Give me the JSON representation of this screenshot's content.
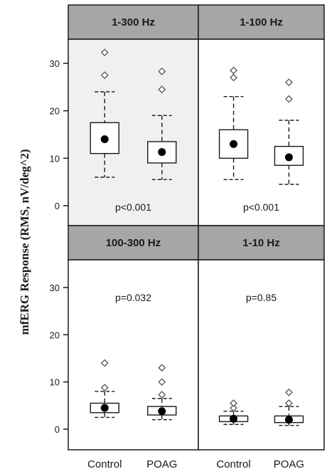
{
  "chart_data": {
    "type": "boxplot",
    "ylabel": "mfERG Response (RMS, nV/deg^2)",
    "categories": [
      "Control",
      "POAG"
    ],
    "colors": {
      "strip": "#a6a6a6",
      "shaded_panel": "#f0f0f0",
      "frame": "#1a1a1a"
    },
    "panels": [
      {
        "title": "1-300 Hz",
        "yticks": [
          "30",
          "20",
          "10",
          "0"
        ],
        "pvalue": "p<0.001",
        "shaded": true,
        "boxes": [
          {
            "category": "Control",
            "whisker_low": 6,
            "q1": 11,
            "mean": 14,
            "q3": 17.5,
            "whisker_high": 24,
            "outliers": [
              27.5,
              32.3
            ]
          },
          {
            "category": "POAG",
            "whisker_low": 5.5,
            "q1": 9,
            "mean": 11.3,
            "q3": 13.5,
            "whisker_high": 19,
            "outliers": [
              24.5,
              28.3
            ]
          }
        ]
      },
      {
        "title": "1-100 Hz",
        "yticks": [],
        "pvalue": "p<0.001",
        "shaded": false,
        "boxes": [
          {
            "category": "Control",
            "whisker_low": 5.5,
            "q1": 10,
            "mean": 13,
            "q3": 16,
            "whisker_high": 23,
            "outliers": [
              27,
              28.5
            ]
          },
          {
            "category": "POAG",
            "whisker_low": 4.5,
            "q1": 8.5,
            "mean": 10.2,
            "q3": 12.5,
            "whisker_high": 18,
            "outliers": [
              22.5,
              26
            ]
          }
        ]
      },
      {
        "title": "100-300 Hz",
        "yticks": [
          "30",
          "20",
          "10",
          "0"
        ],
        "pvalue": "p=0.032",
        "shaded": false,
        "boxes": [
          {
            "category": "Control",
            "whisker_low": 2.5,
            "q1": 3.5,
            "mean": 4.5,
            "q3": 5.5,
            "whisker_high": 8,
            "outliers": [
              8.8,
              14
            ]
          },
          {
            "category": "POAG",
            "whisker_low": 2,
            "q1": 3,
            "mean": 3.8,
            "q3": 4.8,
            "whisker_high": 6.5,
            "outliers": [
              7.3,
              10,
              13
            ]
          }
        ]
      },
      {
        "title": "1-10 Hz",
        "yticks": [],
        "pvalue": "p=0.85",
        "shaded": false,
        "boxes": [
          {
            "category": "Control",
            "whisker_low": 1,
            "q1": 1.6,
            "mean": 2.2,
            "q3": 2.8,
            "whisker_high": 3.8,
            "outliers": [
              4.5,
              5.5
            ]
          },
          {
            "category": "POAG",
            "whisker_low": 0.8,
            "q1": 1.4,
            "mean": 2,
            "q3": 2.8,
            "whisker_high": 4.8,
            "outliers": [
              5.5,
              7.8
            ]
          }
        ]
      }
    ]
  }
}
